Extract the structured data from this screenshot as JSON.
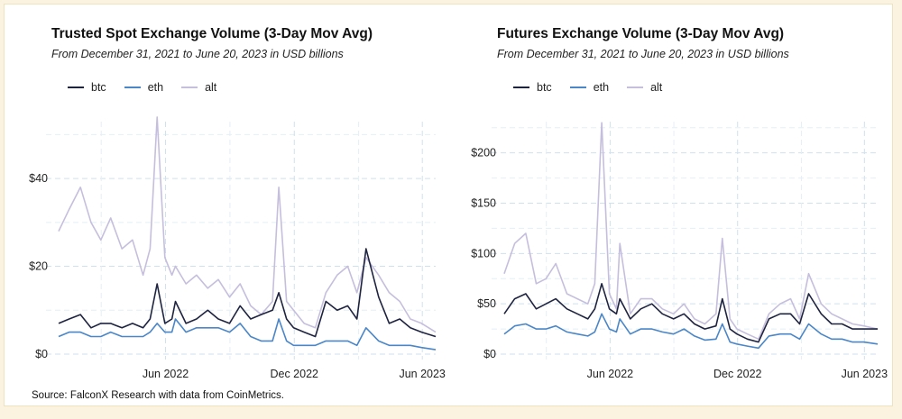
{
  "source": "Source: FalconX Research with data from CoinMetrics.",
  "chart_data": [
    {
      "type": "line",
      "title": "Trusted Spot Exchange Volume (3-Day Mov Avg)",
      "subtitle": "From December 31, 2021 to June 20, 2023 in USD billions",
      "xlabel": "",
      "ylabel": "",
      "legend_position": "top-left",
      "grid": true,
      "x_range": [
        "2021-12-31",
        "2023-06-20"
      ],
      "ylim": [
        0,
        55
      ],
      "y_ticks": [
        0,
        20,
        40
      ],
      "y_tick_labels": [
        "$0",
        "$20",
        "$40"
      ],
      "x_ticks": [
        "2022-06-01",
        "2022-12-01",
        "2023-06-01"
      ],
      "x_tick_labels": [
        "Jun 2022",
        "Dec 2022",
        "Jun 2023"
      ],
      "x": [
        "2021-12-31",
        "2022-01-15",
        "2022-01-31",
        "2022-02-15",
        "2022-03-01",
        "2022-03-15",
        "2022-03-31",
        "2022-04-15",
        "2022-04-30",
        "2022-05-10",
        "2022-05-20",
        "2022-05-31",
        "2022-06-10",
        "2022-06-15",
        "2022-06-30",
        "2022-07-15",
        "2022-07-31",
        "2022-08-15",
        "2022-08-31",
        "2022-09-15",
        "2022-09-30",
        "2022-10-15",
        "2022-10-31",
        "2022-11-09",
        "2022-11-20",
        "2022-11-30",
        "2022-12-15",
        "2022-12-31",
        "2023-01-15",
        "2023-01-31",
        "2023-02-15",
        "2023-02-28",
        "2023-03-13",
        "2023-03-31",
        "2023-04-15",
        "2023-04-30",
        "2023-05-15",
        "2023-05-31",
        "2023-06-20"
      ],
      "series": [
        {
          "name": "btc",
          "color": "#1e2340",
          "values": [
            7,
            8,
            9,
            6,
            7,
            7,
            6,
            7,
            6,
            8,
            16,
            7,
            8,
            12,
            7,
            8,
            10,
            8,
            7,
            11,
            8,
            9,
            10,
            14,
            8,
            6,
            5,
            4,
            12,
            10,
            11,
            8,
            24,
            13,
            7,
            8,
            6,
            5,
            4
          ]
        },
        {
          "name": "eth",
          "color": "#4a86c8",
          "values": [
            4,
            5,
            5,
            4,
            4,
            5,
            4,
            4,
            4,
            5,
            7,
            5,
            5,
            8,
            5,
            6,
            6,
            6,
            5,
            7,
            4,
            3,
            3,
            8,
            3,
            2,
            2,
            2,
            3,
            3,
            3,
            2,
            6,
            3,
            2,
            2,
            2,
            1.5,
            1
          ]
        },
        {
          "name": "alt",
          "color": "#c6bedd",
          "values": [
            28,
            33,
            38,
            30,
            26,
            31,
            24,
            26,
            18,
            24,
            54,
            22,
            18,
            20,
            16,
            18,
            15,
            17,
            13,
            16,
            11,
            9,
            12,
            38,
            12,
            10,
            7,
            6,
            14,
            18,
            20,
            14,
            22,
            18,
            14,
            12,
            8,
            7,
            5
          ]
        }
      ]
    },
    {
      "type": "line",
      "title": "Futures Exchange Volume (3-Day Mov Avg)",
      "subtitle": "From December 31, 2021 to June 20, 2023 in USD billions",
      "xlabel": "",
      "ylabel": "",
      "legend_position": "top-left",
      "grid": true,
      "x_range": [
        "2021-12-31",
        "2023-06-20"
      ],
      "ylim": [
        0,
        240
      ],
      "y_ticks": [
        0,
        50,
        100,
        150,
        200
      ],
      "y_tick_labels": [
        "$0",
        "$50",
        "$100",
        "$150",
        "$200"
      ],
      "x_ticks": [
        "2022-06-01",
        "2022-12-01",
        "2023-06-01"
      ],
      "x_tick_labels": [
        "Jun 2022",
        "Dec 2022",
        "Jun 2023"
      ],
      "x": [
        "2021-12-31",
        "2022-01-15",
        "2022-01-31",
        "2022-02-15",
        "2022-03-01",
        "2022-03-15",
        "2022-03-31",
        "2022-04-15",
        "2022-04-30",
        "2022-05-10",
        "2022-05-20",
        "2022-05-31",
        "2022-06-10",
        "2022-06-15",
        "2022-06-30",
        "2022-07-15",
        "2022-07-31",
        "2022-08-15",
        "2022-08-31",
        "2022-09-15",
        "2022-09-30",
        "2022-10-15",
        "2022-10-31",
        "2022-11-09",
        "2022-11-20",
        "2022-11-30",
        "2022-12-15",
        "2022-12-31",
        "2023-01-15",
        "2023-01-31",
        "2023-02-15",
        "2023-02-28",
        "2023-03-13",
        "2023-03-31",
        "2023-04-15",
        "2023-04-30",
        "2023-05-15",
        "2023-05-31",
        "2023-06-20"
      ],
      "series": [
        {
          "name": "btc",
          "color": "#1e2340",
          "values": [
            40,
            55,
            60,
            45,
            50,
            55,
            45,
            40,
            35,
            45,
            70,
            45,
            40,
            55,
            35,
            45,
            50,
            40,
            35,
            40,
            30,
            25,
            28,
            55,
            25,
            20,
            15,
            12,
            35,
            40,
            40,
            30,
            60,
            40,
            30,
            30,
            25,
            25,
            25
          ]
        },
        {
          "name": "eth",
          "color": "#4a86c8",
          "values": [
            20,
            28,
            30,
            25,
            25,
            28,
            22,
            20,
            18,
            22,
            40,
            25,
            22,
            35,
            20,
            25,
            25,
            22,
            20,
            25,
            18,
            14,
            15,
            30,
            12,
            10,
            8,
            6,
            18,
            20,
            20,
            15,
            30,
            20,
            15,
            15,
            12,
            12,
            10
          ]
        },
        {
          "name": "alt",
          "color": "#c6bedd",
          "values": [
            80,
            110,
            120,
            70,
            75,
            90,
            60,
            55,
            50,
            70,
            230,
            60,
            45,
            110,
            40,
            55,
            55,
            45,
            40,
            50,
            35,
            30,
            40,
            115,
            35,
            25,
            20,
            15,
            40,
            50,
            55,
            35,
            80,
            50,
            40,
            35,
            30,
            28,
            25
          ]
        }
      ]
    }
  ]
}
